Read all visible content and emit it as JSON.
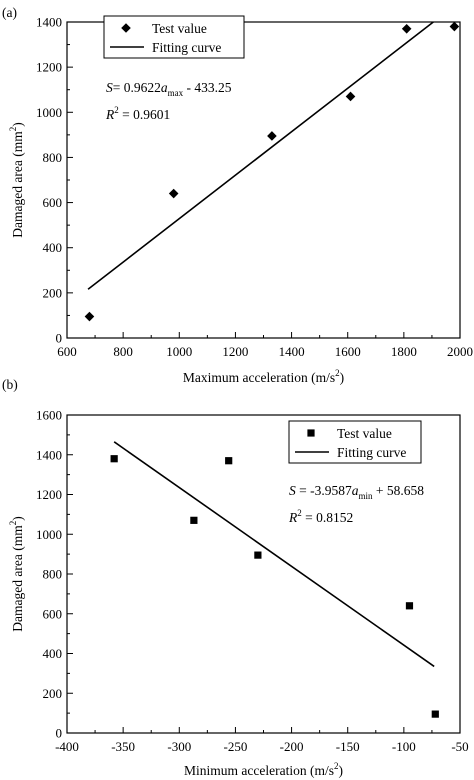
{
  "chart_data": [
    {
      "type": "scatter",
      "panel_label": "(a)",
      "xlabel": {
        "main": "Maximum acceleration (m/s",
        "sup": "2",
        "end": ")"
      },
      "ylabel": {
        "main": "Damaged area (mm",
        "sup": "2",
        "end": ")"
      },
      "xlim": [
        600,
        2000
      ],
      "ylim": [
        0,
        1400
      ],
      "xticks": [
        600,
        800,
        1000,
        1200,
        1400,
        1600,
        1800,
        2000
      ],
      "yticks": [
        0,
        200,
        400,
        600,
        800,
        1000,
        1200,
        1400
      ],
      "marker": "diamond",
      "series": [
        {
          "name": "Test value",
          "type": "scatter",
          "x": [
            680,
            980,
            1330,
            1610,
            1810,
            1980
          ],
          "y": [
            95,
            640,
            895,
            1070,
            1370,
            1380
          ]
        },
        {
          "name": "Fitting curve",
          "type": "line",
          "x": [
            675,
            1905
          ],
          "y": [
            216,
            1400
          ]
        }
      ],
      "legend_position": "top-left",
      "equation": {
        "s": "S",
        "eq": "= 0.9622",
        "a": "a",
        "sub": "max",
        "rest": " - 433.25"
      },
      "r2": {
        "r": "R",
        "sup": "2",
        "rest": " = 0.9601"
      }
    },
    {
      "type": "scatter",
      "panel_label": "(b)",
      "xlabel": {
        "main": "Minimum acceleration (m/s",
        "sup": "2",
        "end": ")"
      },
      "ylabel": {
        "main": "Damaged area (mm",
        "sup": "2",
        "end": ")"
      },
      "xlim": [
        -400,
        -50
      ],
      "ylim": [
        0,
        1600
      ],
      "xticks": [
        -400,
        -350,
        -300,
        -250,
        -200,
        -150,
        -100,
        -50
      ],
      "xtick_labels": [
        "-400",
        "-350",
        "-300",
        "-250",
        "-200",
        "-150",
        "-100",
        "-50"
      ],
      "yticks": [
        0,
        200,
        400,
        600,
        800,
        1000,
        1200,
        1400,
        1600
      ],
      "marker": "square",
      "series": [
        {
          "name": "Test value",
          "type": "scatter",
          "x": [
            -358,
            -287,
            -256,
            -230,
            -95,
            -72
          ],
          "y": [
            1380,
            1070,
            1370,
            895,
            640,
            95
          ]
        },
        {
          "name": "Fitting curve",
          "type": "line",
          "x": [
            -358,
            -73
          ],
          "y": [
            1465,
            335
          ]
        }
      ],
      "legend_position": "top-right",
      "equation": {
        "s": "S",
        "eq": " = -3.9587",
        "a": "a",
        "sub": "min",
        "rest": " + 58.658"
      },
      "r2": {
        "r": "R",
        "sup": "2",
        "rest": " = 0.8152"
      }
    }
  ]
}
